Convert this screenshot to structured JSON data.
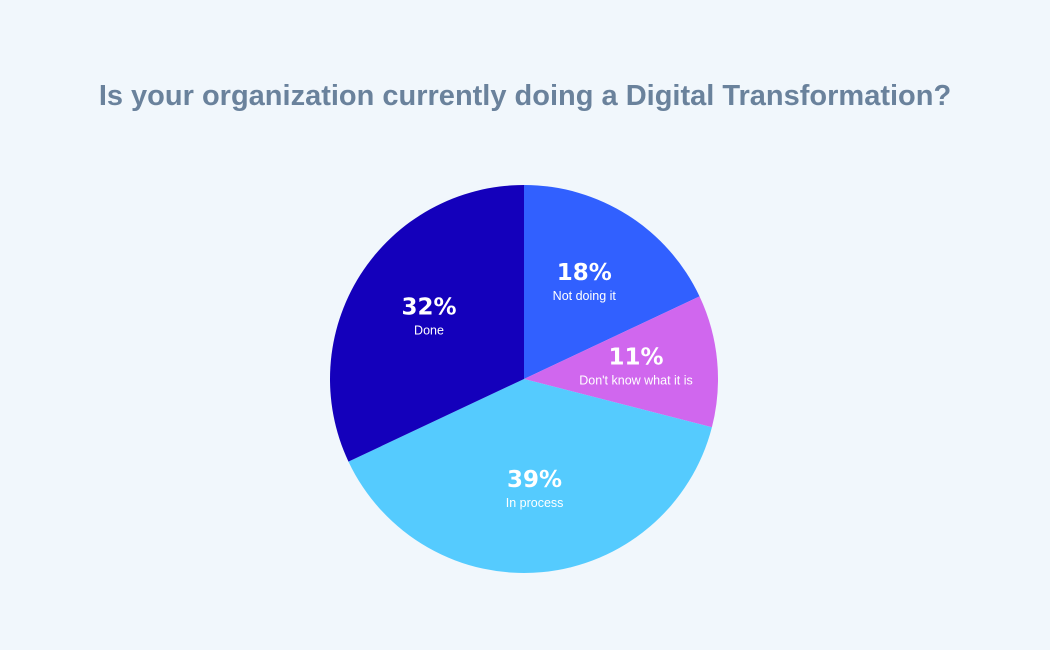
{
  "chart_data": {
    "type": "pie",
    "title": "Is your organization currently doing a Digital Transformation?",
    "start_angle_deg": 0,
    "direction": "clockwise",
    "slices": [
      {
        "label": "Not doing it",
        "value": 18,
        "display": "18%",
        "color": "#3160ff"
      },
      {
        "label": "Don't know what it is",
        "value": 11,
        "display": "11%",
        "color": "#d067ee"
      },
      {
        "label": "In process",
        "value": 39,
        "display": "39%",
        "color": "#55cbfe"
      },
      {
        "label": "Done",
        "value": 32,
        "display": "32%",
        "color": "#1400bb"
      }
    ]
  }
}
